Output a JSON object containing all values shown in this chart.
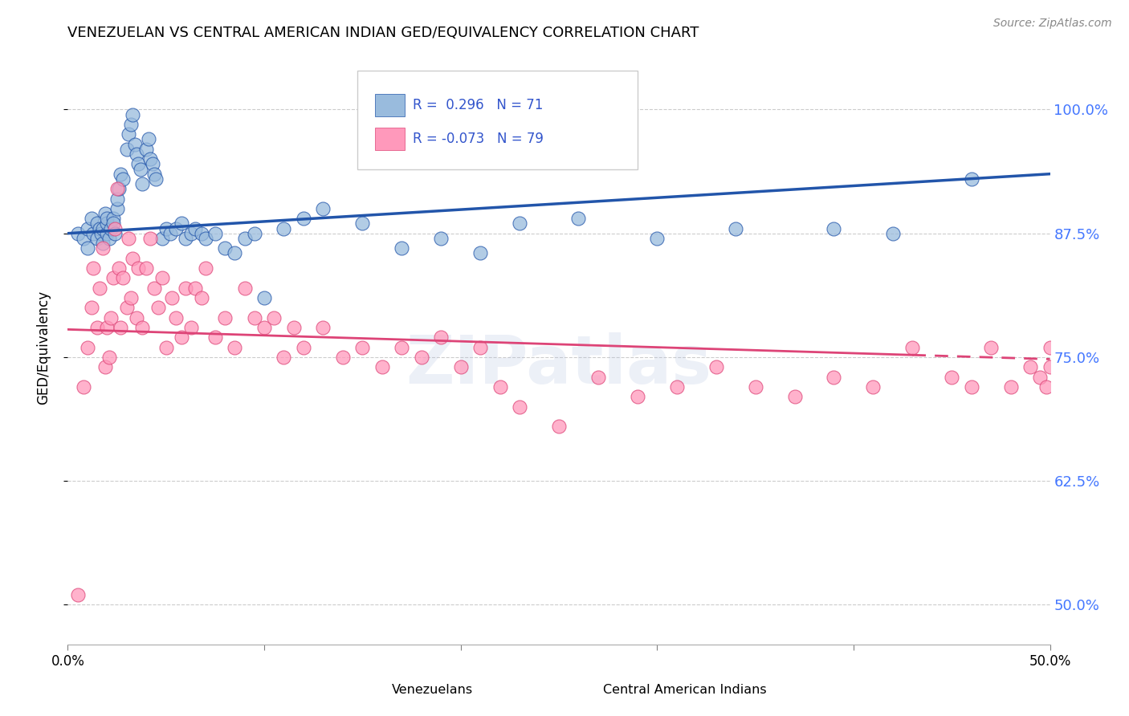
{
  "title": "VENEZUELAN VS CENTRAL AMERICAN INDIAN GED/EQUIVALENCY CORRELATION CHART",
  "source": "Source: ZipAtlas.com",
  "ylabel": "GED/Equivalency",
  "yticks": [
    0.5,
    0.625,
    0.75,
    0.875,
    1.0
  ],
  "ytick_labels": [
    "50.0%",
    "62.5%",
    "75.0%",
    "87.5%",
    "100.0%"
  ],
  "xlim": [
    0.0,
    0.5
  ],
  "ylim": [
    0.46,
    1.06
  ],
  "color_blue": "#99BBDD",
  "color_pink": "#FF99BB",
  "line_blue": "#2255AA",
  "line_pink": "#DD4477",
  "watermark": "ZIPatlas",
  "venezuelan_x": [
    0.005,
    0.008,
    0.01,
    0.01,
    0.012,
    0.013,
    0.015,
    0.015,
    0.016,
    0.017,
    0.018,
    0.018,
    0.019,
    0.02,
    0.02,
    0.02,
    0.021,
    0.022,
    0.023,
    0.023,
    0.024,
    0.025,
    0.025,
    0.026,
    0.027,
    0.028,
    0.03,
    0.031,
    0.032,
    0.033,
    0.034,
    0.035,
    0.036,
    0.037,
    0.038,
    0.04,
    0.041,
    0.042,
    0.043,
    0.044,
    0.045,
    0.048,
    0.05,
    0.052,
    0.055,
    0.058,
    0.06,
    0.063,
    0.065,
    0.068,
    0.07,
    0.075,
    0.08,
    0.085,
    0.09,
    0.095,
    0.1,
    0.11,
    0.12,
    0.13,
    0.15,
    0.17,
    0.19,
    0.21,
    0.23,
    0.26,
    0.3,
    0.34,
    0.39,
    0.42,
    0.46
  ],
  "venezuelan_y": [
    0.875,
    0.87,
    0.88,
    0.86,
    0.89,
    0.875,
    0.885,
    0.87,
    0.88,
    0.875,
    0.865,
    0.88,
    0.895,
    0.875,
    0.885,
    0.89,
    0.87,
    0.88,
    0.89,
    0.885,
    0.875,
    0.9,
    0.91,
    0.92,
    0.935,
    0.93,
    0.96,
    0.975,
    0.985,
    0.995,
    0.965,
    0.955,
    0.945,
    0.94,
    0.925,
    0.96,
    0.97,
    0.95,
    0.945,
    0.935,
    0.93,
    0.87,
    0.88,
    0.875,
    0.88,
    0.885,
    0.87,
    0.875,
    0.88,
    0.875,
    0.87,
    0.875,
    0.86,
    0.855,
    0.87,
    0.875,
    0.81,
    0.88,
    0.89,
    0.9,
    0.885,
    0.86,
    0.87,
    0.855,
    0.885,
    0.89,
    0.87,
    0.88,
    0.88,
    0.875,
    0.93
  ],
  "central_x": [
    0.005,
    0.008,
    0.01,
    0.012,
    0.013,
    0.015,
    0.016,
    0.018,
    0.019,
    0.02,
    0.021,
    0.022,
    0.023,
    0.024,
    0.025,
    0.026,
    0.027,
    0.028,
    0.03,
    0.031,
    0.032,
    0.033,
    0.035,
    0.036,
    0.038,
    0.04,
    0.042,
    0.044,
    0.046,
    0.048,
    0.05,
    0.053,
    0.055,
    0.058,
    0.06,
    0.063,
    0.065,
    0.068,
    0.07,
    0.075,
    0.08,
    0.085,
    0.09,
    0.095,
    0.1,
    0.105,
    0.11,
    0.115,
    0.12,
    0.13,
    0.14,
    0.15,
    0.16,
    0.17,
    0.18,
    0.19,
    0.2,
    0.21,
    0.22,
    0.23,
    0.25,
    0.27,
    0.29,
    0.31,
    0.33,
    0.35,
    0.37,
    0.39,
    0.41,
    0.43,
    0.45,
    0.46,
    0.47,
    0.48,
    0.49,
    0.495,
    0.498,
    0.5,
    0.5
  ],
  "central_y": [
    0.51,
    0.72,
    0.76,
    0.8,
    0.84,
    0.78,
    0.82,
    0.86,
    0.74,
    0.78,
    0.75,
    0.79,
    0.83,
    0.88,
    0.92,
    0.84,
    0.78,
    0.83,
    0.8,
    0.87,
    0.81,
    0.85,
    0.79,
    0.84,
    0.78,
    0.84,
    0.87,
    0.82,
    0.8,
    0.83,
    0.76,
    0.81,
    0.79,
    0.77,
    0.82,
    0.78,
    0.82,
    0.81,
    0.84,
    0.77,
    0.79,
    0.76,
    0.82,
    0.79,
    0.78,
    0.79,
    0.75,
    0.78,
    0.76,
    0.78,
    0.75,
    0.76,
    0.74,
    0.76,
    0.75,
    0.77,
    0.74,
    0.76,
    0.72,
    0.7,
    0.68,
    0.73,
    0.71,
    0.72,
    0.74,
    0.72,
    0.71,
    0.73,
    0.72,
    0.76,
    0.73,
    0.72,
    0.76,
    0.72,
    0.74,
    0.73,
    0.72,
    0.74,
    0.76
  ]
}
